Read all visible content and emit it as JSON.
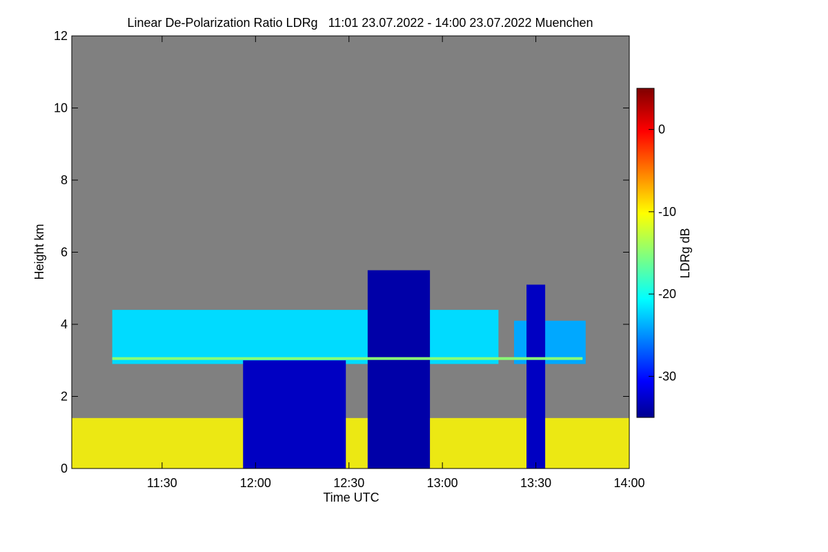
{
  "chart_data": {
    "type": "heatmap",
    "title": "Linear De-Polarization Ratio LDRg   11:01 23.07.2022 - 14:00 23.07.2022 Muenchen",
    "xlabel": "Time UTC",
    "ylabel": "Height km",
    "x_range": [
      "11:01",
      "14:00"
    ],
    "ylim": [
      0,
      12
    ],
    "x_ticks": [
      "11:30",
      "12:00",
      "12:30",
      "13:00",
      "13:30",
      "14:00"
    ],
    "y_ticks": [
      0,
      2,
      4,
      6,
      8,
      10,
      12
    ],
    "background_color": "#808080",
    "colorbar": {
      "label": "LDRg dB",
      "range": [
        -35,
        5
      ],
      "ticks": [
        0,
        -10,
        -20,
        -30
      ],
      "colormap": "jet"
    },
    "features": [
      {
        "kind": "cloud_layer",
        "t_start": "11:14",
        "t_end": "13:18",
        "base_km": 2.9,
        "top_km": 4.4,
        "ldr_db": -22
      },
      {
        "kind": "cloud_layer",
        "t_start": "13:23",
        "t_end": "13:46",
        "base_km": 2.9,
        "top_km": 4.1,
        "ldr_db": -24
      },
      {
        "kind": "bright_band",
        "t_start": "11:14",
        "t_end": "13:45",
        "height_km": 3.05,
        "ldr_db": -15
      },
      {
        "kind": "precipitation",
        "t_start": "11:56",
        "t_end": "12:29",
        "base_km": 0,
        "top_km": 3.0,
        "ldr_db": -33
      },
      {
        "kind": "precipitation",
        "t_start": "12:36",
        "t_end": "12:56",
        "base_km": 0,
        "top_km": 5.5,
        "ldr_db": -34
      },
      {
        "kind": "precipitation",
        "t_start": "13:27",
        "t_end": "13:33",
        "base_km": 0,
        "top_km": 5.1,
        "ldr_db": -33
      },
      {
        "kind": "insects_boundary_layer",
        "t_start": "11:01",
        "t_end": "14:00",
        "base_km": 0,
        "top_km": 1.4,
        "ldr_db": -10
      }
    ]
  }
}
